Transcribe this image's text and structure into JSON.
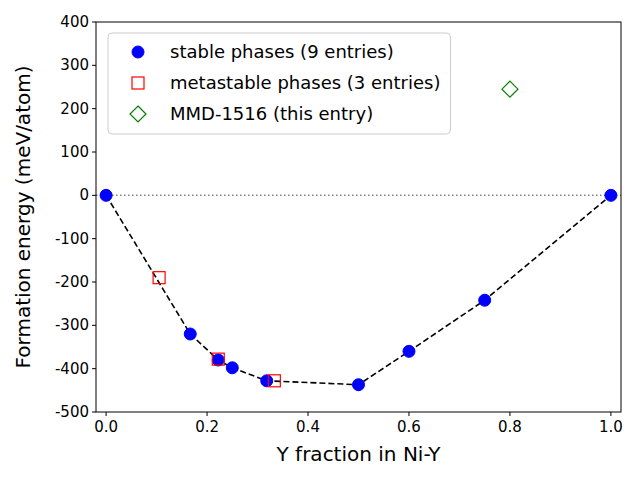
{
  "chart_data": {
    "type": "scatter",
    "x_label": "Y fraction in Ni-Y",
    "y_label": "Formation energy (meV/atom)",
    "xlim": [
      -0.02,
      1.02
    ],
    "ylim": [
      -500,
      400
    ],
    "xticks": [
      {
        "value": 0,
        "label": "0.0"
      },
      0.2,
      0.4,
      0.6,
      0.8,
      {
        "value": 1,
        "label": "1.0"
      }
    ],
    "yticks": [
      -500,
      -400,
      -300,
      -200,
      -100,
      0,
      100,
      200,
      300,
      400
    ],
    "reference_line": 0,
    "legend": "upper left",
    "grid": false,
    "series": [
      {
        "name": "stable phases (9 entries)",
        "color": "blue",
        "marker": "circle",
        "line_style": "dashed",
        "x": [
          0,
          0.1667,
          0.2222,
          0.25,
          0.3182,
          0.5,
          0.6,
          0.75,
          1.0
        ],
        "values": [
          0,
          -320,
          -380,
          -398,
          -428,
          -437,
          -360,
          -242,
          0
        ]
      },
      {
        "name": "metastable phases (3 entries)",
        "color": "red",
        "marker": "square",
        "x": [
          0.105,
          0.2222,
          0.3333
        ],
        "values": [
          -190,
          -378,
          -428
        ]
      },
      {
        "name": "MMD-1516 (this entry)",
        "color": "green",
        "marker": "diamond",
        "x": [
          0.8
        ],
        "values": [
          245
        ]
      }
    ]
  }
}
